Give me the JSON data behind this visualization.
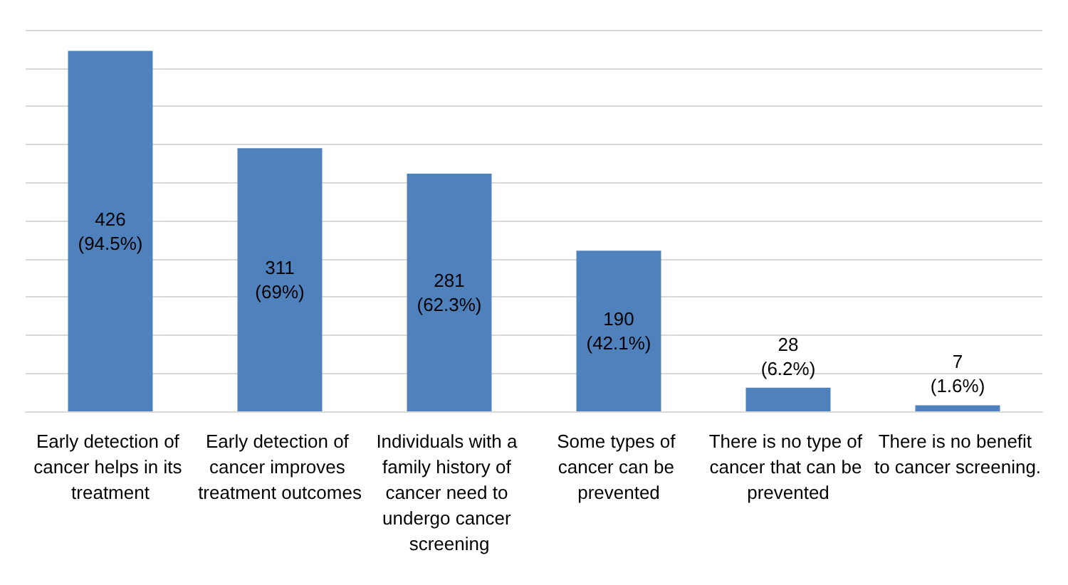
{
  "chart_data": {
    "type": "bar",
    "categories": [
      "Early detection of cancer helps in its treatment",
      "Early detection of cancer improves treatment outcomes",
      "Individuals with a family history of cancer need to undergo cancer screening",
      "Some types of cancer can be prevented",
      "There is no type of cancer that can be prevented",
      "There is no benefit to cancer screening."
    ],
    "values": [
      94.5,
      69,
      62.3,
      42.1,
      6.2,
      1.6
    ],
    "value_labels": [
      "426\n(94.5%)",
      "311\n(69%)",
      "281\n(62.3%)",
      "190\n(42.1%)",
      "28\n(6.2%)",
      "7\n(1.6%)"
    ],
    "color": "#4f81bd",
    "ylim": [
      0,
      100
    ],
    "yticks": [
      {
        "value": 0,
        "label": null
      },
      {
        "value": 10,
        "label": null
      },
      {
        "value": 20,
        "label": null
      },
      {
        "value": 30,
        "label": null
      },
      {
        "value": 40,
        "label": null
      },
      {
        "value": 50,
        "label": null
      },
      {
        "value": 60,
        "label": null
      },
      {
        "value": 70,
        "label": null
      },
      {
        "value": 80,
        "label": null
      },
      {
        "value": 90,
        "label": null
      },
      {
        "value": 100,
        "label": null
      }
    ],
    "grid": "y",
    "tick_labels": "x"
  }
}
